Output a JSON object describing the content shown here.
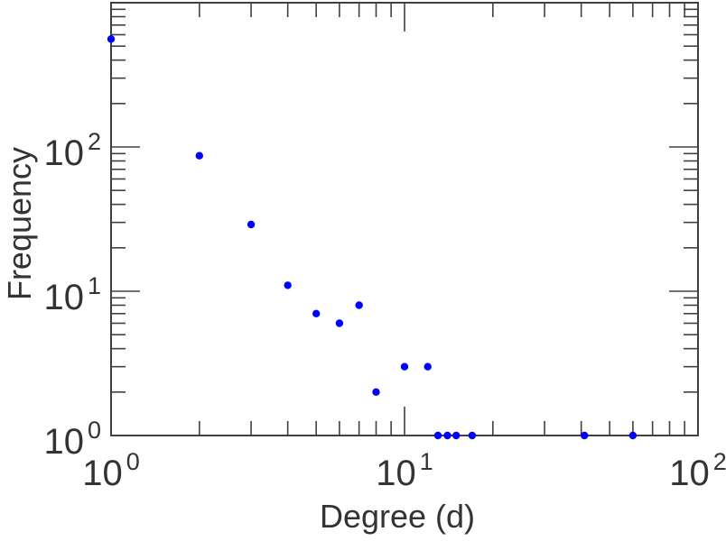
{
  "chart_data": {
    "type": "scatter",
    "title": "",
    "xlabel": "Degree (d)",
    "ylabel": "Frequency",
    "x_scale": "log",
    "y_scale": "log",
    "xlim": [
      1,
      100
    ],
    "ylim": [
      1,
      1000
    ],
    "grid": false,
    "legend": "none",
    "marker": "filled-circle",
    "marker_color": "#0000ff",
    "axis_color": "#404040",
    "text_color": "#333333",
    "points": [
      {
        "x": 1,
        "y": 560
      },
      {
        "x": 2,
        "y": 87
      },
      {
        "x": 3,
        "y": 29
      },
      {
        "x": 4,
        "y": 11
      },
      {
        "x": 5,
        "y": 7
      },
      {
        "x": 6,
        "y": 6
      },
      {
        "x": 7,
        "y": 8
      },
      {
        "x": 8,
        "y": 2
      },
      {
        "x": 10,
        "y": 3
      },
      {
        "x": 12,
        "y": 3
      },
      {
        "x": 13,
        "y": 1
      },
      {
        "x": 14,
        "y": 1
      },
      {
        "x": 15,
        "y": 1
      },
      {
        "x": 17,
        "y": 1
      },
      {
        "x": 41,
        "y": 1
      },
      {
        "x": 60,
        "y": 1
      }
    ],
    "x_major_ticks": [
      {
        "value": 1,
        "base": "10",
        "exp": "0"
      },
      {
        "value": 10,
        "base": "10",
        "exp": "1"
      },
      {
        "value": 100,
        "base": "10",
        "exp": "2"
      }
    ],
    "y_major_ticks": [
      {
        "value": 1,
        "base": "10",
        "exp": "0"
      },
      {
        "value": 10,
        "base": "10",
        "exp": "1"
      },
      {
        "value": 100,
        "base": "10",
        "exp": "2"
      },
      {
        "value": 1000,
        "base": "",
        "exp": ""
      }
    ],
    "x_minor_ticks": [
      2,
      3,
      4,
      5,
      6,
      7,
      8,
      9,
      20,
      30,
      40,
      50,
      60,
      70,
      80,
      90
    ],
    "y_minor_ticks": [
      2,
      3,
      4,
      5,
      6,
      7,
      8,
      9,
      20,
      30,
      40,
      50,
      60,
      70,
      80,
      90,
      200,
      300,
      400,
      500,
      600,
      700,
      800,
      900
    ]
  }
}
